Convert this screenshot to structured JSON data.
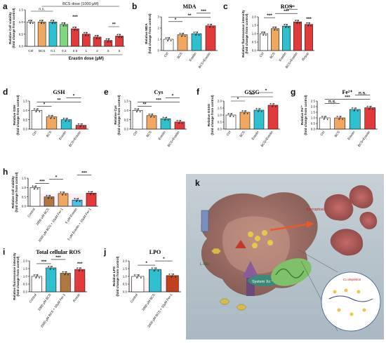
{
  "chart_data": [
    {
      "id": "a",
      "type": "bar",
      "panel_label": "a",
      "title": "",
      "ylabel_lines": [
        "Relative Cell viability",
        "(fold change from control)"
      ],
      "ylim": [
        0,
        1.5
      ],
      "yticks": [
        "0.0",
        "0.5",
        "1.0",
        "1.5"
      ],
      "categories": [
        "Ctrl",
        "BCS",
        "0.1",
        "0.2",
        "0.5",
        "1",
        "2",
        "5",
        "5"
      ],
      "values": [
        1.0,
        1.0,
        1.0,
        0.9,
        0.72,
        0.5,
        0.38,
        0.24,
        0.42
      ],
      "colors": [
        "#ffffff",
        "#f0a860",
        "#2fc0d0",
        "#7fd880",
        "#e23a3a",
        "#e23a3a",
        "#e23a3a",
        "#e23a3a",
        "#e23a3a"
      ],
      "bracket_texts": {
        "top": "BCS dose (1000 µM)",
        "ns": "n.s.",
        "mid": "***",
        "right": "**"
      },
      "xlabel": "Erastin dose (µM)"
    },
    {
      "id": "b",
      "type": "bar",
      "panel_label": "b",
      "title": "MDA",
      "ylabel_lines": [
        "Relative MDA",
        "(fold change from control)"
      ],
      "ylim": [
        0,
        3
      ],
      "yticks": [
        "0",
        "1",
        "2",
        "3"
      ],
      "categories": [
        "Ctrl",
        "BCS",
        "Erastin",
        "BCS+Erastin"
      ],
      "values": [
        1.0,
        1.4,
        1.5,
        2.2
      ],
      "colors": [
        "#ffffff",
        "#f0a860",
        "#2fc0d0",
        "#e23a3a"
      ],
      "sig": [
        "*",
        "**",
        "***"
      ]
    },
    {
      "id": "c",
      "type": "bar",
      "panel_label": "c",
      "title": "ROS",
      "ylabel_lines": [
        "Relative fluorescence intensity",
        "(fold change from control)"
      ],
      "ylim": [
        0,
        2.0
      ],
      "yticks": [
        "0.0",
        "0.5",
        "1.0",
        "1.5",
        "2.0"
      ],
      "categories": [
        "Ctrl",
        "BCS",
        "Erastin",
        "BCS+Erastin",
        "Rosup"
      ],
      "values": [
        1.0,
        1.3,
        1.45,
        1.7,
        1.55
      ],
      "colors": [
        "#ffffff",
        "#f0a860",
        "#2fc0d0",
        "#e23a3a",
        "#e23a3a"
      ],
      "sig": [
        "***",
        "***",
        "***",
        "***"
      ]
    },
    {
      "id": "d",
      "type": "bar",
      "panel_label": "d",
      "title": "GSH",
      "ylabel_lines": [
        "Relative GSH",
        "(fold change from control)"
      ],
      "ylim": [
        0,
        1.5
      ],
      "yticks": [
        "0.0",
        "0.5",
        "1.0",
        "1.5"
      ],
      "categories": [
        "Ctrl",
        "BCS",
        "Erastin",
        "BCS+Erastin"
      ],
      "values": [
        1.0,
        0.65,
        0.5,
        0.2
      ],
      "colors": [
        "#ffffff",
        "#f0a860",
        "#2fc0d0",
        "#e23a3a"
      ],
      "sig": [
        "*",
        "**",
        "*"
      ]
    },
    {
      "id": "e",
      "type": "bar",
      "panel_label": "e",
      "title": "Cys",
      "ylabel_lines": [
        "Relative Cys",
        "(fold change from control)"
      ],
      "ylim": [
        0,
        1.5
      ],
      "yticks": [
        "0.0",
        "0.5",
        "1.0",
        "1.5"
      ],
      "categories": [
        "Ctrl",
        "BCS",
        "Erastin",
        "BCS+Erastin"
      ],
      "values": [
        1.0,
        0.72,
        0.55,
        0.38
      ],
      "colors": [
        "#ffffff",
        "#f0a860",
        "#2fc0d0",
        "#e23a3a"
      ],
      "sig": [
        "**",
        "***",
        "*"
      ]
    },
    {
      "id": "f",
      "type": "bar",
      "panel_label": "f",
      "title": "GSSG",
      "ylabel_lines": [
        "Relative GSSG",
        "(fold change from control)"
      ],
      "ylim": [
        0,
        2.0
      ],
      "yticks": [
        "0.0",
        "0.5",
        "1.0",
        "1.5",
        "2.0"
      ],
      "categories": [
        "Ctrl",
        "BCS",
        "Erastin",
        "BCS+Erastin"
      ],
      "values": [
        1.0,
        1.2,
        1.35,
        1.7
      ],
      "colors": [
        "#ffffff",
        "#f0a860",
        "#2fc0d0",
        "#e23a3a"
      ],
      "sig": [
        "*",
        "***",
        "*"
      ]
    },
    {
      "id": "g",
      "type": "bar",
      "panel_label": "g",
      "title": "Fe²⁺",
      "ylabel_lines": [
        "Relative Fe²⁺",
        "(fold change from control)"
      ],
      "ylim": [
        0,
        2.5
      ],
      "yticks": [
        "0.0",
        "0.5",
        "1.0",
        "1.5",
        "2.0",
        "2.5"
      ],
      "categories": [
        "Ctrl",
        "BCS",
        "Erastin",
        "BCS+Erastin"
      ],
      "values": [
        1.0,
        1.0,
        1.75,
        1.9
      ],
      "colors": [
        "#ffffff",
        "#f0a860",
        "#2fc0d0",
        "#e23a3a"
      ],
      "sig": [
        "n.s.",
        "***",
        "n.s."
      ]
    },
    {
      "id": "h",
      "type": "bar",
      "panel_label": "h",
      "title": "",
      "ylabel_lines": [
        "Relative Cell viability",
        "(fold change from control)"
      ],
      "ylim": [
        0,
        1.5
      ],
      "yticks": [
        "0.0",
        "0.5",
        "1.0",
        "1.5"
      ],
      "categories": [
        "Control",
        "2000 µM BCS",
        "2000 µM BCS + 10µM Fer-1",
        "5 µM Erastin",
        "5 µM Erastin + 10µM Fer-1"
      ],
      "values": [
        1.0,
        0.5,
        0.68,
        0.33,
        0.7
      ],
      "colors": [
        "#ffffff",
        "#b07840",
        "#f0a860",
        "#4fc0e8",
        "#e23a3a"
      ],
      "sig": [
        "***",
        "*",
        "***"
      ]
    },
    {
      "id": "i",
      "type": "bar",
      "panel_label": "i",
      "title": "Total cellular ROS",
      "ylabel_lines": [
        "Relative fluorescence intensity",
        "(fold change from control)"
      ],
      "ylim": [
        0,
        2.0
      ],
      "yticks": [
        "0.0",
        "0.5",
        "1.0",
        "1.5",
        "2.0"
      ],
      "categories": [
        "Control",
        "2000 µM BCS",
        "2000 µM BCS + 10µM Fer-1",
        "Rosup"
      ],
      "values": [
        1.0,
        1.55,
        1.2,
        1.45
      ],
      "colors": [
        "#ffffff",
        "#2fc0d0",
        "#b07840",
        "#e23a3a"
      ],
      "sig": [
        "***",
        "***",
        "***"
      ]
    },
    {
      "id": "j",
      "type": "bar",
      "panel_label": "j",
      "title": "LPO",
      "ylabel_lines": [
        "Relative LPO",
        "(fold change from control)"
      ],
      "ylim": [
        0,
        2.0
      ],
      "yticks": [
        "0.0",
        "0.5",
        "1.0",
        "1.5",
        "2.0"
      ],
      "categories": [
        "Control",
        "2000 µM BCS",
        "2000 µM BCS + 10µM Fer-1"
      ],
      "values": [
        1.0,
        1.45,
        1.05
      ],
      "colors": [
        "#ffffff",
        "#2fc0d0",
        "#c04020"
      ],
      "sig": [
        "*",
        "*"
      ]
    }
  ],
  "schematic": {
    "panel_label": "k",
    "labels": {
      "ferroptosis": "Ferroptosis",
      "system_xc": "System Xc⁻",
      "cu_depletion": "Cu depletion",
      "l_glu": "L-Glu"
    },
    "colors": {
      "cell": "#9a6a60",
      "dead_cell": "#b86a66",
      "mito": "#7fc06a",
      "xc": "#8a5a9a"
    }
  }
}
